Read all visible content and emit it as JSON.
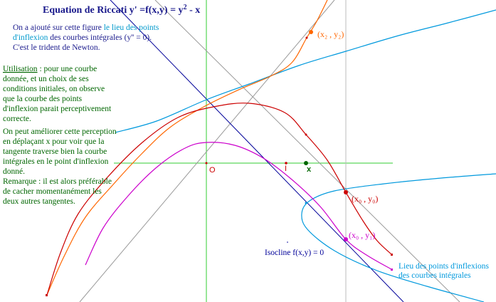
{
  "title": {
    "prefix": "Equation de Riccati y' =f(x,y) = y",
    "exponent": "2",
    "suffix": " - x"
  },
  "intro": {
    "line1_a": "On a ajouté sur cette figure ",
    "line1_b": "le lieu des points",
    "line2_a": "d'inflexion",
    "line2_b": " des courbes intégrales (y'' = 0).",
    "line3": "C'est le trident de Newton."
  },
  "usage": {
    "heading": "Utilisation",
    "line1": " : pour une courbe",
    "line2": "donnée, et un choix de ses",
    "line3": "conditions initiales, on observe",
    "line4": "que la courbe des points",
    "line5": "d'inflexion parait perceptivement",
    "line6": "correcte."
  },
  "improve": {
    "line1": "On peut améliorer cette perception",
    "line2": "en déplaçant x pour voir que la",
    "line3": "tangente traverse bien la courbe",
    "line4": "intégrales en le point d'inflexion",
    "line5": "donné."
  },
  "remark": {
    "line1": "Remarque : il est alors préférable",
    "line2": "de cacher momentanément les",
    "line3": "deux autres tangentes."
  },
  "labels": {
    "origin": "O",
    "point_i": "I",
    "point_x": "x",
    "x2y2": "(x₂ , y₂)",
    "x0y0": "(x₀ , y₀)",
    "x0y1": "(x₀ , y₁)",
    "isocline": "Isocline f(x,y) = 0",
    "locus_line1": "Lieu des points d'inflexions",
    "locus_line2": "des courbes intégrales"
  },
  "colors": {
    "title": "#1a1a8c",
    "intro": "#1a1a8c",
    "intro_highlight": "#0099cc",
    "green_text": "#006600",
    "axes": "#33cc33",
    "orange_curve": "#ff6600",
    "red_curve": "#cc0000",
    "magenta_curve": "#cc00cc",
    "blue_curve": "#0099dd",
    "isocline": "#000099",
    "gray_lines": "#999999",
    "point_x": "#006600"
  }
}
